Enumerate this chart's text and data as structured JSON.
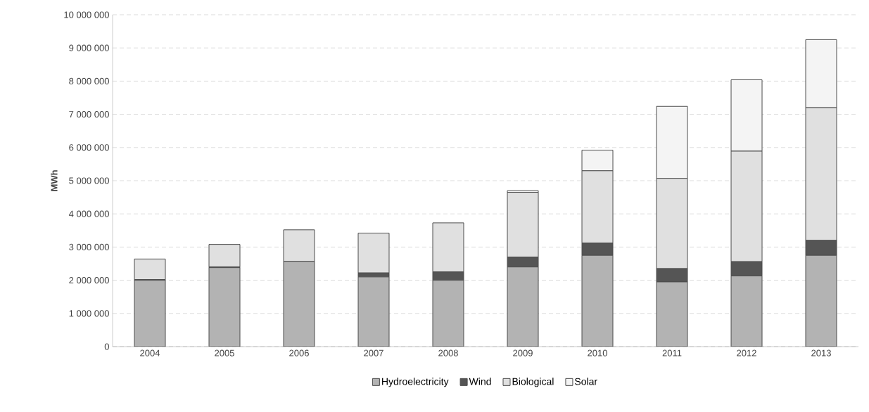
{
  "chart_data": {
    "type": "bar",
    "stacked": true,
    "ylabel": "MWh",
    "categories": [
      "2004",
      "2005",
      "2006",
      "2007",
      "2008",
      "2009",
      "2010",
      "2011",
      "2012",
      "2013"
    ],
    "series": [
      {
        "name": "Hydroelectricity",
        "color": "#b3b3b3",
        "values": [
          2000000,
          2380000,
          2570000,
          2100000,
          2000000,
          2400000,
          2750000,
          1950000,
          2130000,
          2750000
        ]
      },
      {
        "name": "Wind",
        "color": "#555555",
        "values": [
          20000,
          20000,
          null,
          120000,
          250000,
          300000,
          370000,
          400000,
          430000,
          450000
        ]
      },
      {
        "name": "Biological",
        "color": "#e0e0e0",
        "values": [
          620000,
          680000,
          950000,
          1200000,
          1480000,
          1950000,
          2180000,
          2720000,
          3330000,
          4000000
        ]
      },
      {
        "name": "Solar",
        "color": "#f4f4f4",
        "values": [
          0,
          0,
          0,
          0,
          null,
          50000,
          620000,
          2170000,
          2150000,
          2050000
        ]
      }
    ],
    "ylim": [
      0,
      10000000
    ],
    "yticks": [
      {
        "value": 0,
        "label": "0"
      },
      {
        "value": 1000000,
        "label": "1 000 000"
      },
      {
        "value": 2000000,
        "label": "2 000 000"
      },
      {
        "value": 3000000,
        "label": "3 000 000"
      },
      {
        "value": 4000000,
        "label": "4 000 000"
      },
      {
        "value": 5000000,
        "label": "5 000 000"
      },
      {
        "value": 6000000,
        "label": "6 000 000"
      },
      {
        "value": 7000000,
        "label": "7 000 000"
      },
      {
        "value": 8000000,
        "label": "8 000 000"
      },
      {
        "value": 9000000,
        "label": "9 000 000"
      },
      {
        "value": 10000000,
        "label": "10 000 000"
      }
    ],
    "grid": "y",
    "legend": "bottom"
  }
}
